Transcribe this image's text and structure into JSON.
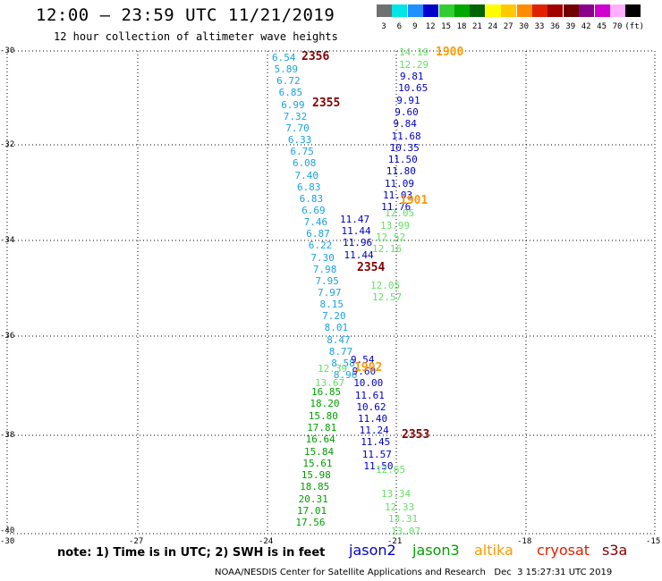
{
  "header": {
    "title": "12:00 – 23:59 UTC 11/21/2019",
    "subtitle": "12 hour collection of altimeter wave heights"
  },
  "color_scale": {
    "swatches": [
      {
        "color": "#707070",
        "label": "3"
      },
      {
        "color": "#00e5e5",
        "label": "6"
      },
      {
        "color": "#1e90ff",
        "label": "9"
      },
      {
        "color": "#0000cd",
        "label": "12"
      },
      {
        "color": "#32cd32",
        "label": "15"
      },
      {
        "color": "#00a800",
        "label": "18"
      },
      {
        "color": "#006400",
        "label": "21"
      },
      {
        "color": "#ffff00",
        "label": "24"
      },
      {
        "color": "#ffc800",
        "label": "27"
      },
      {
        "color": "#ff8c00",
        "label": "30"
      },
      {
        "color": "#e02000",
        "label": "33"
      },
      {
        "color": "#a00000",
        "label": "36"
      },
      {
        "color": "#700000",
        "label": "39"
      },
      {
        "color": "#8b008b",
        "label": "42"
      },
      {
        "color": "#d000d0",
        "label": "45"
      },
      {
        "color": "#ffb0ff",
        "label": "70"
      },
      {
        "color": "#000000",
        "label": "(ft)"
      }
    ]
  },
  "map": {
    "lon_range": [
      -30,
      -15
    ],
    "lat_range": [
      -40,
      -30
    ],
    "lon_ticks": [
      "-30",
      "-27",
      "-24",
      "-21",
      "-18",
      "-15"
    ],
    "lat_ticks": [
      "-30",
      "-32",
      "-34",
      "-36",
      "-38",
      "-40"
    ],
    "grid": "dotted"
  },
  "tracks": [
    {
      "color": "#1aa3e0",
      "values": [
        "6.54",
        "5.89",
        "6.72",
        "6.85",
        "6.99",
        "7.32",
        "7.70",
        "6.33",
        "6.75",
        "6.08",
        "7.40",
        "6.83",
        "6.83",
        "6.69",
        "7.46",
        "6.87",
        "6.22",
        "7.30",
        "7.98",
        "7.95",
        "7.97",
        "8.15",
        "7.20",
        "8.01",
        "8.47",
        "8.77",
        "8.58",
        "8.96"
      ]
    },
    {
      "color": "#0000cd",
      "values": [
        "9.81",
        "10.65",
        "9.91",
        "9.60",
        "9.84",
        "11.68",
        "10.35",
        "11.50",
        "11.80",
        "11.09",
        "11.03",
        "11.76",
        "11.47",
        "11.44",
        "11.96",
        "11.44",
        "9.54",
        "9.60",
        "10.00",
        "11.61",
        "10.62",
        "11.40",
        "11.24",
        "11.45",
        "11.57",
        "11.50"
      ]
    },
    {
      "color": "#66e066",
      "values": [
        "14.19",
        "12.29",
        "12.05",
        "13.99",
        "12.52",
        "12.16",
        "12.05",
        "12.57",
        "12.39",
        "13.67",
        "12.65",
        "13.34",
        "12.33",
        "13.31",
        "13.07"
      ]
    },
    {
      "color": "#00a000",
      "values": [
        "16.85",
        "18.20",
        "15.80",
        "17.81",
        "16.64",
        "15.84",
        "15.61",
        "15.98",
        "18.85",
        "20.31",
        "17.01",
        "17.56"
      ]
    }
  ],
  "time_labels": [
    {
      "text": "2356",
      "color": "#800000"
    },
    {
      "text": "1900",
      "color": "#ff9900"
    },
    {
      "text": "2355",
      "color": "#800000"
    },
    {
      "text": "1901",
      "color": "#ff9900"
    },
    {
      "text": "2354",
      "color": "#800000"
    },
    {
      "text": "1902",
      "color": "#ff9900"
    },
    {
      "text": "2353",
      "color": "#800000"
    }
  ],
  "note": "note: 1) Time is in UTC; 2) SWH is in feet",
  "satellites": [
    {
      "name": "jason2",
      "color": "#0000cd"
    },
    {
      "name": "jason3",
      "color": "#00a000"
    },
    {
      "name": "altika",
      "color": "#ff9900"
    },
    {
      "name": "cryosat",
      "color": "#e02000"
    },
    {
      "name": "s3a",
      "color": "#800000"
    }
  ],
  "footer": "NOAA/NESDIS Center for Satellite Applications and Research   Dec  3 15:27:31 UTC 2019"
}
